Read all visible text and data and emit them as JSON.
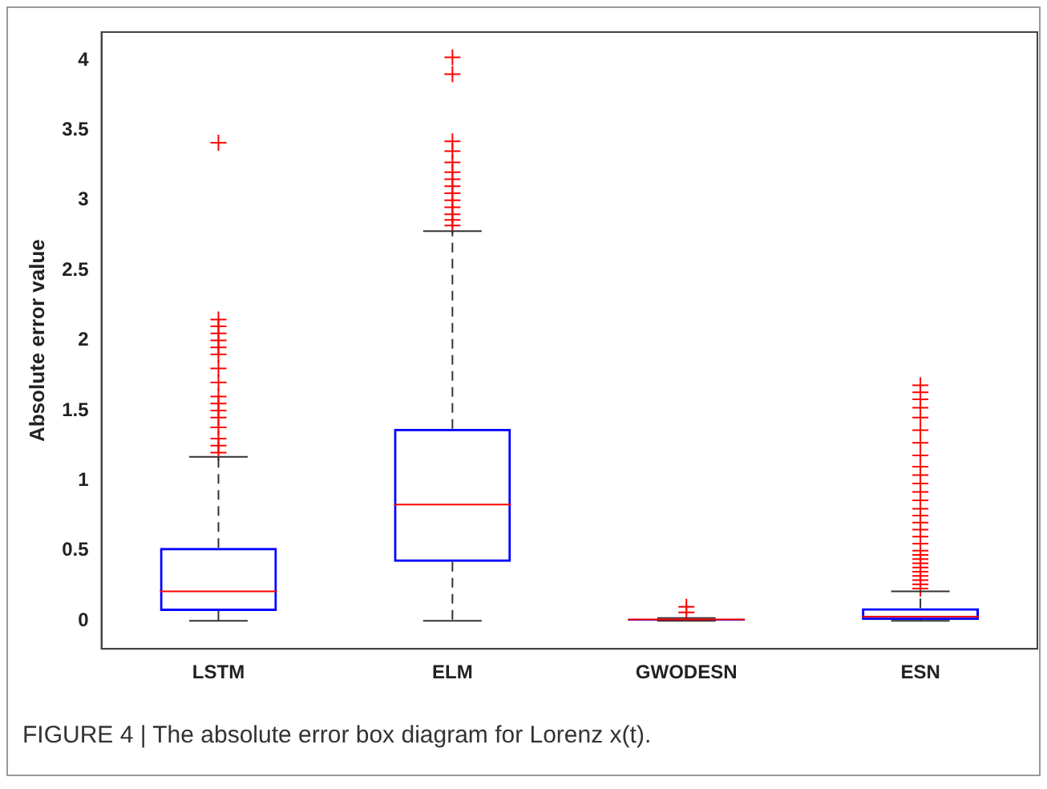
{
  "chart_data": {
    "type": "box",
    "ylabel": "Absolute error value",
    "categories": [
      "LSTM",
      "ELM",
      "GWODESN",
      "ESN"
    ],
    "boxes": [
      {
        "low": 0,
        "q1": 0.07,
        "median": 0.21,
        "q3": 0.52,
        "high": 1.17,
        "outliers": [
          1.2,
          1.25,
          1.3,
          1.38,
          1.45,
          1.5,
          1.55,
          1.6,
          1.7,
          1.8,
          1.9,
          1.95,
          2.0,
          2.05,
          2.1,
          2.15,
          3.41
        ]
      },
      {
        "low": 0,
        "q1": 0.42,
        "median": 0.83,
        "q3": 1.37,
        "high": 2.78,
        "outliers": [
          2.82,
          2.86,
          2.9,
          2.95,
          3.0,
          3.05,
          3.1,
          3.15,
          3.2,
          3.27,
          3.35,
          3.42,
          3.9,
          4.02
        ]
      },
      {
        "low": 0,
        "q1": 0,
        "median": 0.01,
        "q3": 0.01,
        "high": 0.02,
        "outliers": [
          0.06,
          0.1
        ]
      },
      {
        "low": 0,
        "q1": 0.005,
        "median": 0.03,
        "q3": 0.09,
        "high": 0.21,
        "outliers": [
          0.23,
          0.26,
          0.29,
          0.32,
          0.35,
          0.38,
          0.41,
          0.44,
          0.47,
          0.5,
          0.55,
          0.6,
          0.65,
          0.7,
          0.75,
          0.8,
          0.86,
          0.92,
          0.98,
          1.04,
          1.1,
          1.18,
          1.27,
          1.36,
          1.45,
          1.52,
          1.58,
          1.63,
          1.68
        ]
      }
    ],
    "color": "#0000ff",
    "marker": "cross",
    "ylim": [
      -0.2,
      4.2
    ],
    "yticks": [
      0,
      0.5,
      1,
      1.5,
      2,
      2.5,
      3,
      3.5,
      4
    ],
    "grid": false,
    "legend": false,
    "annotations": [
      "FIGURE 4 | The absolute error box diagram for Lorenz x(t)."
    ]
  }
}
